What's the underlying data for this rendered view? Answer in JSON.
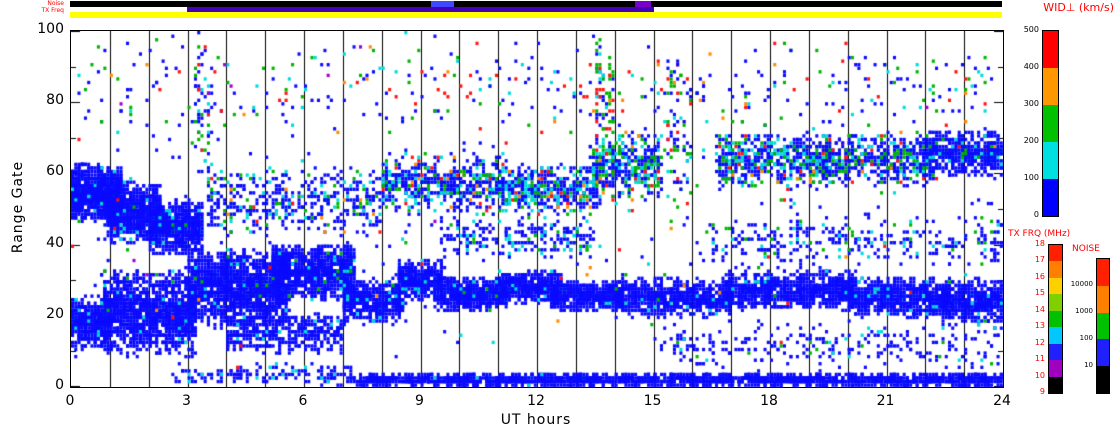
{
  "axes": {
    "x": {
      "label": "UT hours",
      "range": [
        0,
        24
      ],
      "ticks": [
        "0",
        "3",
        "6",
        "9",
        "12",
        "15",
        "18",
        "21",
        "24"
      ],
      "tick_values": [
        0,
        3,
        6,
        9,
        12,
        15,
        18,
        21,
        24
      ],
      "gridline_every_hour": true
    },
    "y": {
      "label": "Range Gate",
      "range": [
        0,
        100
      ],
      "ticks": [
        "0",
        "20",
        "40",
        "60",
        "80",
        "100"
      ],
      "tick_values": [
        0,
        20,
        40,
        60,
        80,
        100
      ]
    }
  },
  "strips": {
    "noise_label": "Noise",
    "tx_label": "TX Freq",
    "noise_color": "#000000",
    "noise_segments": [
      {
        "h0": 9.3,
        "h1": 9.9,
        "color": "#4048ff"
      },
      {
        "h0": 14.55,
        "h1": 14.95,
        "color": "#7a00c8"
      }
    ],
    "tx_base_color": "#ffff00",
    "tx_overlay": {
      "h0": 3.0,
      "h1": 15.05,
      "color": "#4400bb"
    }
  },
  "colorbars": [
    {
      "id": "wid",
      "title": "WID⊥ (km/s)",
      "title_color": "#ff0000",
      "tick_color": "#000000",
      "ticks": [
        "500",
        "400",
        "300",
        "200",
        "100",
        "0"
      ],
      "colors_top_to_bottom": [
        "#ff0000",
        "#ff9800",
        "#00c000",
        "#00e0e0",
        "#0000ff"
      ]
    },
    {
      "id": "txfrq",
      "title": "TX FRQ (MHz)",
      "title_color": "#ff0000",
      "tick_color": "#ff0000",
      "ticks": [
        "18",
        "17",
        "16",
        "15",
        "14",
        "13",
        "12",
        "11",
        "10",
        "9"
      ],
      "colors_top_to_bottom": [
        "#ff2000",
        "#ff8000",
        "#ffd000",
        "#80d000",
        "#00c000",
        "#00c8ff",
        "#2020ff",
        "#a000c0",
        "#000000"
      ]
    },
    {
      "id": "noise",
      "title": "NOISE",
      "title_color": "#ff0000",
      "tick_color": "#000000",
      "ticks": [
        "10000",
        "1000",
        "100",
        "10"
      ],
      "colors_top_to_bottom": [
        "#ff2000",
        "#ff8000",
        "#00c000",
        "#2020ff",
        "#000000"
      ]
    }
  ],
  "chart_data": {
    "type": "scatter",
    "description": "Radar range-time plot of perpendicular spectral width WID (km/s) vs UT hour and range gate; each dot colored by width value, dominated by low (blue) widths in dense bands.",
    "xlabel": "UT hours",
    "ylabel": "Range Gate",
    "x_range": [
      0,
      24
    ],
    "y_range": [
      0,
      100
    ],
    "gridlines": "vertical line at every UT hour",
    "seed": 42,
    "palette": {
      "blue": "#0a0aff",
      "cyan": "#00dcdc",
      "green": "#00b400",
      "yellow": "#d8d800",
      "orange": "#ff8c00",
      "red": "#ff1414",
      "purple": "#a000d0"
    },
    "bands": [
      {
        "h0": 0,
        "h1": 1.3,
        "g0": 46,
        "g1": 63,
        "n": 900,
        "c": {
          "blue": 0.97,
          "cyan": 0.03
        }
      },
      {
        "h0": 0.9,
        "h1": 2.3,
        "g0": 40,
        "g1": 58,
        "n": 800,
        "c": {
          "blue": 0.96,
          "cyan": 0.04
        }
      },
      {
        "h0": 2.0,
        "h1": 3.4,
        "g0": 37,
        "g1": 53,
        "n": 700,
        "c": {
          "blue": 0.95,
          "cyan": 0.04,
          "green": 0.01
        }
      },
      {
        "h0": 0,
        "h1": 1.0,
        "g0": 10,
        "g1": 26,
        "n": 450,
        "c": {
          "blue": 0.97,
          "cyan": 0.03
        }
      },
      {
        "h0": 0.8,
        "h1": 3.2,
        "g0": 8,
        "g1": 34,
        "n": 1400,
        "c": {
          "blue": 0.97,
          "cyan": 0.02,
          "green": 0.01
        }
      },
      {
        "h0": 3.0,
        "h1": 5.6,
        "g0": 16,
        "g1": 39,
        "n": 1500,
        "c": {
          "blue": 0.97,
          "cyan": 0.02,
          "green": 0.01
        }
      },
      {
        "h0": 5.2,
        "h1": 7.3,
        "g0": 24,
        "g1": 41,
        "n": 1000,
        "c": {
          "blue": 0.96,
          "cyan": 0.03,
          "green": 0.01
        }
      },
      {
        "h0": 4.0,
        "h1": 7.0,
        "g0": 9,
        "g1": 21,
        "n": 420,
        "c": {
          "blue": 0.95,
          "cyan": 0.05
        }
      },
      {
        "h0": 7.0,
        "h1": 8.6,
        "g0": 17,
        "g1": 31,
        "n": 520,
        "c": {
          "blue": 0.96,
          "cyan": 0.04
        }
      },
      {
        "h0": 8.4,
        "h1": 9.6,
        "g0": 24,
        "g1": 36,
        "n": 450,
        "c": {
          "blue": 0.95,
          "cyan": 0.05
        }
      },
      {
        "h0": 9.4,
        "h1": 11.2,
        "g0": 21,
        "g1": 31,
        "n": 520,
        "c": {
          "blue": 0.96,
          "cyan": 0.04
        }
      },
      {
        "h0": 11.0,
        "h1": 12.6,
        "g0": 23,
        "g1": 33,
        "n": 480,
        "c": {
          "blue": 0.96,
          "cyan": 0.04
        }
      },
      {
        "h0": 12.4,
        "h1": 14.2,
        "g0": 21,
        "g1": 30,
        "n": 480,
        "c": {
          "blue": 0.96,
          "cyan": 0.04
        }
      },
      {
        "h0": 14.0,
        "h1": 17.0,
        "g0": 19,
        "g1": 31,
        "n": 750,
        "c": {
          "blue": 0.96,
          "cyan": 0.03,
          "green": 0.01
        }
      },
      {
        "h0": 16.8,
        "h1": 20.2,
        "g0": 21,
        "g1": 33,
        "n": 850,
        "c": {
          "blue": 0.97,
          "cyan": 0.03
        }
      },
      {
        "h0": 20.0,
        "h1": 22.6,
        "g0": 19,
        "g1": 31,
        "n": 700,
        "c": {
          "blue": 0.97,
          "cyan": 0.03
        }
      },
      {
        "h0": 22.4,
        "h1": 24,
        "g0": 17,
        "g1": 31,
        "n": 500,
        "c": {
          "blue": 0.96,
          "cyan": 0.04
        }
      },
      {
        "h0": 15,
        "h1": 24,
        "g0": 4,
        "g1": 19,
        "n": 260,
        "c": {
          "blue": 0.9,
          "cyan": 0.06,
          "green": 0.04
        }
      },
      {
        "h0": 7.2,
        "h1": 24,
        "g0": 0,
        "g1": 4,
        "n": 1900,
        "c": {
          "blue": 0.985,
          "cyan": 0.015
        }
      },
      {
        "h0": 2.6,
        "h1": 7.2,
        "g0": 0,
        "g1": 7,
        "n": 140,
        "c": {
          "blue": 0.9,
          "cyan": 0.1
        }
      },
      {
        "h0": 3.5,
        "h1": 8.0,
        "g0": 42,
        "g1": 62,
        "n": 420,
        "c": {
          "blue": 0.72,
          "cyan": 0.14,
          "green": 0.1,
          "red": 0.02,
          "orange": 0.02
        }
      },
      {
        "h0": 8.0,
        "h1": 11.2,
        "g0": 48,
        "g1": 66,
        "n": 520,
        "c": {
          "blue": 0.6,
          "cyan": 0.18,
          "green": 0.16,
          "red": 0.03,
          "orange": 0.03
        }
      },
      {
        "h0": 11.0,
        "h1": 13.6,
        "g0": 48,
        "g1": 63,
        "n": 430,
        "c": {
          "blue": 0.62,
          "cyan": 0.18,
          "green": 0.14,
          "red": 0.03,
          "orange": 0.03
        }
      },
      {
        "h0": 13.4,
        "h1": 15.2,
        "g0": 52,
        "g1": 72,
        "n": 420,
        "c": {
          "blue": 0.5,
          "cyan": 0.2,
          "green": 0.22,
          "red": 0.04,
          "orange": 0.04
        }
      },
      {
        "h0": 16.6,
        "h1": 19.5,
        "g0": 55,
        "g1": 72,
        "n": 520,
        "c": {
          "blue": 0.55,
          "cyan": 0.2,
          "green": 0.18,
          "red": 0.03,
          "orange": 0.04
        }
      },
      {
        "h0": 19.3,
        "h1": 22.2,
        "g0": 56,
        "g1": 72,
        "n": 560,
        "c": {
          "blue": 0.65,
          "cyan": 0.15,
          "green": 0.14,
          "red": 0.03,
          "orange": 0.03
        }
      },
      {
        "h0": 22.0,
        "h1": 24,
        "g0": 58,
        "g1": 73,
        "n": 520,
        "c": {
          "blue": 0.85,
          "cyan": 0.08,
          "green": 0.05,
          "red": 0.01,
          "orange": 0.01
        }
      },
      {
        "h0": 0,
        "h1": 24,
        "g0": 68,
        "g1": 100,
        "n": 360,
        "c": {
          "blue": 0.45,
          "green": 0.2,
          "cyan": 0.14,
          "red": 0.13,
          "orange": 0.06,
          "purple": 0.02
        }
      },
      {
        "h0": 0,
        "h1": 24,
        "g0": 0,
        "g1": 100,
        "n": 420,
        "c": {
          "blue": 0.62,
          "cyan": 0.12,
          "green": 0.12,
          "red": 0.08,
          "orange": 0.05,
          "purple": 0.01
        }
      },
      {
        "h0": 3.2,
        "h1": 3.6,
        "g0": 55,
        "g1": 100,
        "n": 60,
        "c": {
          "blue": 0.5,
          "green": 0.2,
          "red": 0.15,
          "cyan": 0.15
        }
      },
      {
        "h0": 13.5,
        "h1": 14.0,
        "g0": 60,
        "g1": 100,
        "n": 70,
        "c": {
          "green": 0.35,
          "red": 0.2,
          "blue": 0.25,
          "cyan": 0.2
        }
      },
      {
        "h0": 15.3,
        "h1": 16.0,
        "g0": 40,
        "g1": 95,
        "n": 80,
        "c": {
          "blue": 0.5,
          "green": 0.2,
          "red": 0.15,
          "cyan": 0.15
        }
      },
      {
        "h0": 16.5,
        "h1": 24,
        "g0": 33,
        "g1": 48,
        "n": 300,
        "c": {
          "blue": 0.8,
          "cyan": 0.12,
          "green": 0.08
        }
      },
      {
        "h0": 9.5,
        "h1": 13.5,
        "g0": 35,
        "g1": 48,
        "n": 220,
        "c": {
          "blue": 0.75,
          "cyan": 0.15,
          "green": 0.1
        }
      }
    ]
  }
}
